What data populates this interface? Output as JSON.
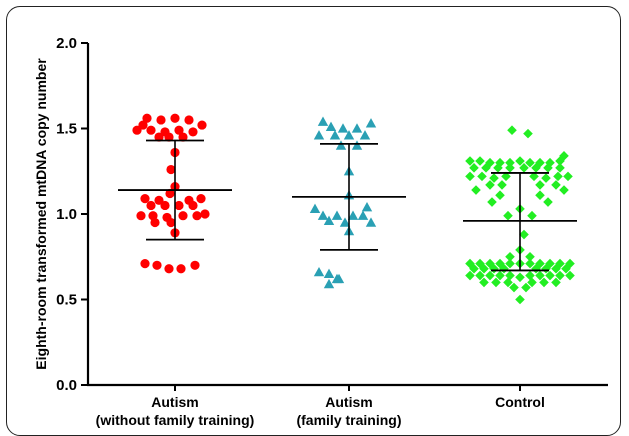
{
  "chart_data": {
    "type": "scatter",
    "title": "",
    "xlabel": "",
    "ylabel": "Eighth-room transformed  mtDNA copy number",
    "ylim": [
      0.0,
      2.0
    ],
    "yticks": [
      "0.0",
      "0.5",
      "1.0",
      "1.5",
      "2.0"
    ],
    "grid": false,
    "categories": [
      {
        "line1": "Autism",
        "line2": "(without family training)"
      },
      {
        "line1": "Autism",
        "line2": "(family training)"
      },
      {
        "line1": "Control",
        "line2": ""
      }
    ],
    "series": [
      {
        "marker": "circle",
        "color": "#ff0000",
        "mean": 1.14,
        "sd_upper": 1.43,
        "sd_lower": 0.85,
        "points": [
          {
            "o": -28,
            "y": 1.56
          },
          {
            "o": -14,
            "y": 1.55
          },
          {
            "o": 0,
            "y": 1.56
          },
          {
            "o": 14,
            "y": 1.55
          },
          {
            "o": -32,
            "y": 1.52
          },
          {
            "o": 27,
            "y": 1.52
          },
          {
            "o": -38,
            "y": 1.49
          },
          {
            "o": -24,
            "y": 1.49
          },
          {
            "o": -10,
            "y": 1.48
          },
          {
            "o": 4,
            "y": 1.49
          },
          {
            "o": 18,
            "y": 1.48
          },
          {
            "o": -16,
            "y": 1.45
          },
          {
            "o": -6,
            "y": 1.45
          },
          {
            "o": 8,
            "y": 1.45
          },
          {
            "o": 0,
            "y": 1.36
          },
          {
            "o": -4,
            "y": 1.26
          },
          {
            "o": 0,
            "y": 1.16
          },
          {
            "o": -5,
            "y": 1.12
          },
          {
            "o": -30,
            "y": 1.09
          },
          {
            "o": -16,
            "y": 1.08
          },
          {
            "o": 14,
            "y": 1.08
          },
          {
            "o": 26,
            "y": 1.09
          },
          {
            "o": -24,
            "y": 1.05
          },
          {
            "o": -10,
            "y": 1.05
          },
          {
            "o": 4,
            "y": 1.05
          },
          {
            "o": 18,
            "y": 1.05
          },
          {
            "o": -34,
            "y": 0.99
          },
          {
            "o": -22,
            "y": 0.99
          },
          {
            "o": -8,
            "y": 0.98
          },
          {
            "o": 8,
            "y": 0.99
          },
          {
            "o": 22,
            "y": 0.99
          },
          {
            "o": 30,
            "y": 1.0
          },
          {
            "o": -20,
            "y": 0.95
          },
          {
            "o": -4,
            "y": 0.95
          },
          {
            "o": 0,
            "y": 0.89
          },
          {
            "o": -30,
            "y": 0.71
          },
          {
            "o": -18,
            "y": 0.7
          },
          {
            "o": -6,
            "y": 0.68
          },
          {
            "o": 6,
            "y": 0.68
          },
          {
            "o": 20,
            "y": 0.7
          }
        ]
      },
      {
        "marker": "triangle",
        "color": "#2aa0b4",
        "mean": 1.1,
        "sd_upper": 1.41,
        "sd_lower": 0.79,
        "points": [
          {
            "o": -26,
            "y": 1.54
          },
          {
            "o": 22,
            "y": 1.53
          },
          {
            "o": -18,
            "y": 1.51
          },
          {
            "o": -6,
            "y": 1.5
          },
          {
            "o": 8,
            "y": 1.5
          },
          {
            "o": -30,
            "y": 1.46
          },
          {
            "o": -14,
            "y": 1.46
          },
          {
            "o": 0,
            "y": 1.46
          },
          {
            "o": 16,
            "y": 1.46
          },
          {
            "o": -8,
            "y": 1.4
          },
          {
            "o": 8,
            "y": 1.4
          },
          {
            "o": 0,
            "y": 1.25
          },
          {
            "o": 0,
            "y": 1.11
          },
          {
            "o": -34,
            "y": 1.03
          },
          {
            "o": 18,
            "y": 1.04
          },
          {
            "o": -26,
            "y": 0.99
          },
          {
            "o": -12,
            "y": 0.99
          },
          {
            "o": 4,
            "y": 0.99
          },
          {
            "o": 14,
            "y": 0.99
          },
          {
            "o": -20,
            "y": 0.96
          },
          {
            "o": -4,
            "y": 0.95
          },
          {
            "o": 22,
            "y": 0.95
          },
          {
            "o": 0,
            "y": 0.9
          },
          {
            "o": -30,
            "y": 0.66
          },
          {
            "o": -20,
            "y": 0.65
          },
          {
            "o": -10,
            "y": 0.62
          },
          {
            "o": -20,
            "y": 0.59
          },
          {
            "o": -12,
            "y": 0.62
          }
        ]
      },
      {
        "marker": "diamond",
        "color": "#22ee22",
        "mean": 0.96,
        "sd_upper": 1.24,
        "sd_lower": 0.67,
        "points": [
          {
            "o": -8,
            "y": 1.49
          },
          {
            "o": 8,
            "y": 1.47
          },
          {
            "o": 44,
            "y": 1.34
          },
          {
            "o": -50,
            "y": 1.31
          },
          {
            "o": -40,
            "y": 1.31
          },
          {
            "o": -30,
            "y": 1.3
          },
          {
            "o": -20,
            "y": 1.3
          },
          {
            "o": -10,
            "y": 1.3
          },
          {
            "o": 0,
            "y": 1.31
          },
          {
            "o": 10,
            "y": 1.3
          },
          {
            "o": 20,
            "y": 1.3
          },
          {
            "o": 30,
            "y": 1.3
          },
          {
            "o": 40,
            "y": 1.31
          },
          {
            "o": -46,
            "y": 1.27
          },
          {
            "o": -34,
            "y": 1.27
          },
          {
            "o": -22,
            "y": 1.27
          },
          {
            "o": -10,
            "y": 1.27
          },
          {
            "o": 4,
            "y": 1.27
          },
          {
            "o": 16,
            "y": 1.27
          },
          {
            "o": 28,
            "y": 1.27
          },
          {
            "o": 40,
            "y": 1.27
          },
          {
            "o": -50,
            "y": 1.22
          },
          {
            "o": -38,
            "y": 1.22
          },
          {
            "o": -26,
            "y": 1.21
          },
          {
            "o": -14,
            "y": 1.22
          },
          {
            "o": 14,
            "y": 1.22
          },
          {
            "o": 26,
            "y": 1.21
          },
          {
            "o": 38,
            "y": 1.22
          },
          {
            "o": 48,
            "y": 1.22
          },
          {
            "o": -30,
            "y": 1.17
          },
          {
            "o": -18,
            "y": 1.17
          },
          {
            "o": 20,
            "y": 1.17
          },
          {
            "o": 36,
            "y": 1.17
          },
          {
            "o": -44,
            "y": 1.14
          },
          {
            "o": 44,
            "y": 1.14
          },
          {
            "o": -20,
            "y": 1.11
          },
          {
            "o": 20,
            "y": 1.11
          },
          {
            "o": -28,
            "y": 1.07
          },
          {
            "o": 28,
            "y": 1.07
          },
          {
            "o": 0,
            "y": 1.03
          },
          {
            "o": -12,
            "y": 0.99
          },
          {
            "o": 12,
            "y": 0.99
          },
          {
            "o": 4,
            "y": 0.88
          },
          {
            "o": 0,
            "y": 0.79
          },
          {
            "o": -10,
            "y": 0.75
          },
          {
            "o": 10,
            "y": 0.75
          },
          {
            "o": -50,
            "y": 0.71
          },
          {
            "o": -40,
            "y": 0.71
          },
          {
            "o": -30,
            "y": 0.71
          },
          {
            "o": -20,
            "y": 0.71
          },
          {
            "o": -10,
            "y": 0.71
          },
          {
            "o": 0,
            "y": 0.71
          },
          {
            "o": 10,
            "y": 0.71
          },
          {
            "o": 20,
            "y": 0.71
          },
          {
            "o": 30,
            "y": 0.71
          },
          {
            "o": 40,
            "y": 0.71
          },
          {
            "o": 50,
            "y": 0.71
          },
          {
            "o": -46,
            "y": 0.68
          },
          {
            "o": -36,
            "y": 0.68
          },
          {
            "o": -26,
            "y": 0.68
          },
          {
            "o": -16,
            "y": 0.68
          },
          {
            "o": 16,
            "y": 0.68
          },
          {
            "o": 26,
            "y": 0.68
          },
          {
            "o": 36,
            "y": 0.68
          },
          {
            "o": 46,
            "y": 0.68
          },
          {
            "o": -50,
            "y": 0.64
          },
          {
            "o": -40,
            "y": 0.64
          },
          {
            "o": -30,
            "y": 0.64
          },
          {
            "o": -20,
            "y": 0.64
          },
          {
            "o": -10,
            "y": 0.64
          },
          {
            "o": 0,
            "y": 0.63
          },
          {
            "o": 10,
            "y": 0.64
          },
          {
            "o": 20,
            "y": 0.64
          },
          {
            "o": 30,
            "y": 0.64
          },
          {
            "o": 40,
            "y": 0.64
          },
          {
            "o": 50,
            "y": 0.64
          },
          {
            "o": -36,
            "y": 0.6
          },
          {
            "o": -24,
            "y": 0.6
          },
          {
            "o": -12,
            "y": 0.6
          },
          {
            "o": 12,
            "y": 0.6
          },
          {
            "o": 24,
            "y": 0.6
          },
          {
            "o": 36,
            "y": 0.6
          },
          {
            "o": -6,
            "y": 0.57
          },
          {
            "o": 6,
            "y": 0.57
          },
          {
            "o": 0,
            "y": 0.5
          }
        ]
      }
    ]
  }
}
